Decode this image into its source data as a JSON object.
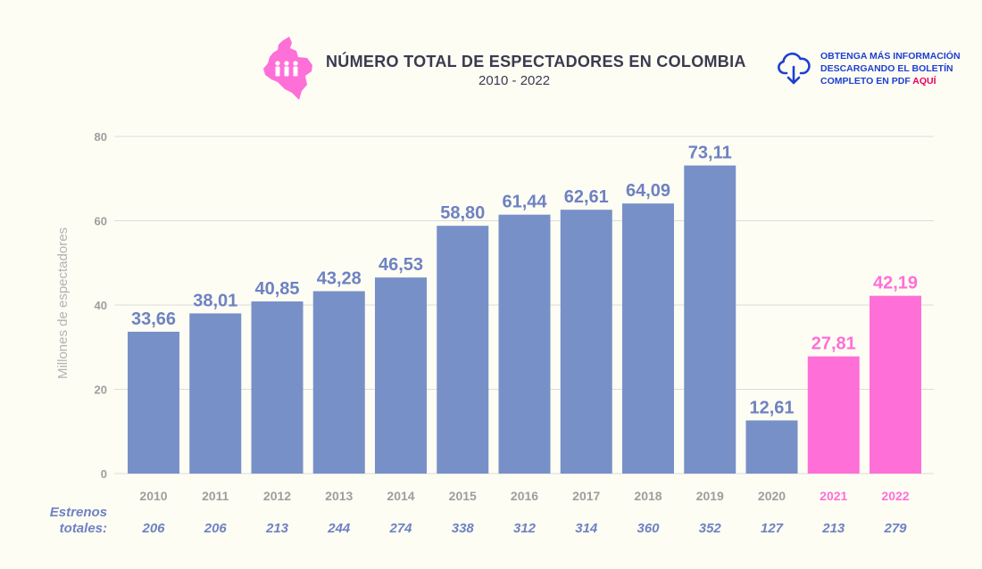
{
  "header": {
    "title": "NÚMERO TOTAL DE ESPECTADORES EN COLOMBIA",
    "subtitle": "2010 - 2022"
  },
  "download": {
    "line1": "OBTENGA MÁS INFORMACIÓN",
    "line2": "DESCARGANDO EL BOLETÍN",
    "line3": "COMPLETO EN PDF",
    "link": "AQUÍ"
  },
  "colors": {
    "bar": "#7890c8",
    "highlight": "#ff6fd8",
    "label": "#6e82c2",
    "tick": "#9e9e9e",
    "grid": "#dcdcdc",
    "title": "#3a3a50",
    "download": "#1f3fd0",
    "link": "#e8005a"
  },
  "icons": {
    "map": "colombia-map-icon",
    "download": "cloud-download-icon"
  },
  "chart_data": {
    "type": "bar",
    "title": "NÚMERO TOTAL DE ESPECTADORES EN COLOMBIA",
    "subtitle": "2010 - 2022",
    "ylabel": "Millones de espectadores",
    "xlabel": "",
    "ylim": [
      0,
      80
    ],
    "yticks": [
      0,
      20,
      40,
      60,
      80
    ],
    "grid": true,
    "categories": [
      "2010",
      "2011",
      "2012",
      "2013",
      "2014",
      "2015",
      "2016",
      "2017",
      "2018",
      "2019",
      "2020",
      "2021",
      "2022"
    ],
    "values": [
      33.66,
      38.01,
      40.85,
      43.28,
      46.53,
      58.8,
      61.44,
      62.61,
      64.09,
      73.11,
      12.61,
      27.81,
      42.19
    ],
    "value_labels": [
      "33,66",
      "38,01",
      "40,85",
      "43,28",
      "46,53",
      "58,80",
      "61,44",
      "62,61",
      "64,09",
      "73,11",
      "12,61",
      "27,81",
      "42,19"
    ],
    "highlighted": [
      "2021",
      "2022"
    ],
    "releases": {
      "label_line1": "Estrenos",
      "label_line2": "totales:",
      "values": [
        "206",
        "206",
        "213",
        "244",
        "274",
        "338",
        "312",
        "314",
        "360",
        "352",
        "127",
        "213",
        "279"
      ]
    }
  }
}
